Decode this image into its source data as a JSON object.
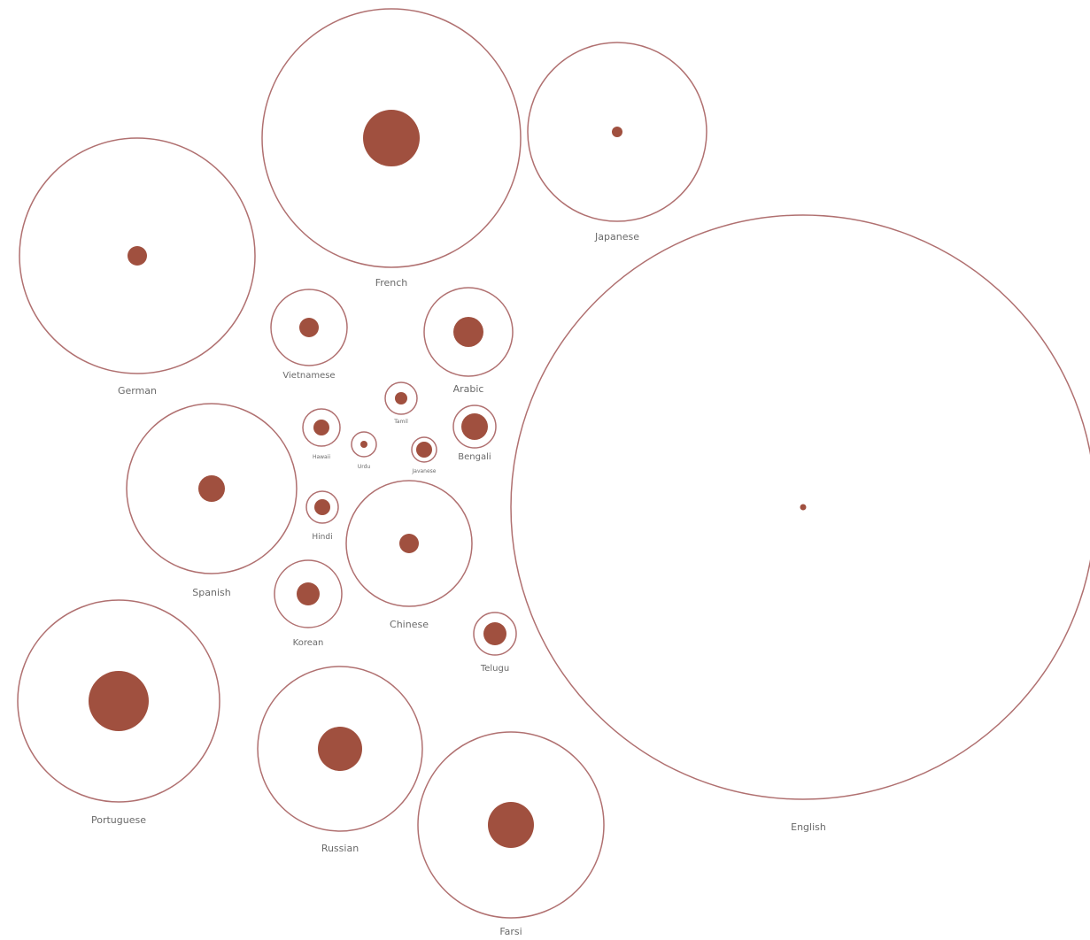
{
  "chart_data": {
    "type": "bubble",
    "colors": {
      "outer_stroke": "#b07070",
      "inner_fill": "#a0503f",
      "label": "#6a6a6a"
    },
    "items": [
      {
        "label": "English",
        "outer_radius": 330,
        "inner_radius": 3.5
      },
      {
        "label": "French",
        "outer_radius": 146,
        "inner_radius": 32
      },
      {
        "label": "German",
        "outer_radius": 133,
        "inner_radius": 11
      },
      {
        "label": "Japanese",
        "outer_radius": 101,
        "inner_radius": 6
      },
      {
        "label": "Portuguese",
        "outer_radius": 114,
        "inner_radius": 34
      },
      {
        "label": "Farsi",
        "outer_radius": 105,
        "inner_radius": 26
      },
      {
        "label": "Spanish",
        "outer_radius": 96,
        "inner_radius": 15
      },
      {
        "label": "Russian",
        "outer_radius": 93,
        "inner_radius": 25
      },
      {
        "label": "Chinese",
        "outer_radius": 71,
        "inner_radius": 11
      },
      {
        "label": "Arabic",
        "outer_radius": 50,
        "inner_radius": 17
      },
      {
        "label": "Vietnamese",
        "outer_radius": 43,
        "inner_radius": 11
      },
      {
        "label": "Korean",
        "outer_radius": 38,
        "inner_radius": 13
      },
      {
        "label": "Telugu",
        "outer_radius": 24,
        "inner_radius": 13
      },
      {
        "label": "Bengali",
        "outer_radius": 24,
        "inner_radius": 15
      },
      {
        "label": "Hawaii",
        "outer_radius": 21,
        "inner_radius": 9
      },
      {
        "label": "Hindi",
        "outer_radius": 18,
        "inner_radius": 9
      },
      {
        "label": "Tamil",
        "outer_radius": 18,
        "inner_radius": 7
      },
      {
        "label": "Javanese",
        "outer_radius": 14,
        "inner_radius": 9
      },
      {
        "label": "Urdu",
        "outer_radius": 14,
        "inner_radius": 4
      }
    ]
  }
}
